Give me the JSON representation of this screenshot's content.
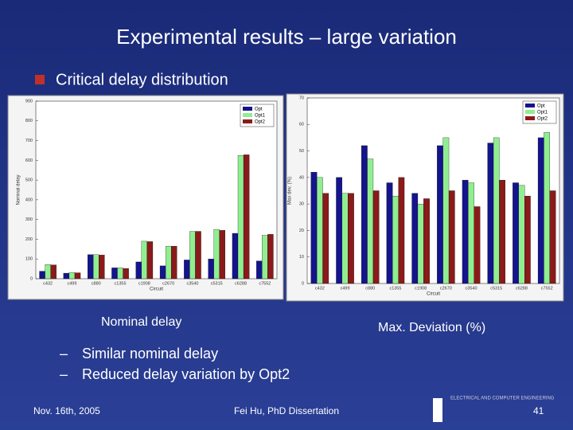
{
  "title": "Experimental results – large variation",
  "bullet": "Critical delay distribution",
  "captions": [
    "Nominal delay",
    "Max. Deviation (%)"
  ],
  "sub_bullets": [
    "Similar nominal delay",
    "Reduced delay variation by Opt2"
  ],
  "footer": {
    "date": "Nov. 16th, 2005",
    "center": "Fei Hu, PhD Dissertation",
    "page": "41",
    "logo": "ELECTRICAL AND COMPUTER ENGINEERING"
  },
  "chart_data": [
    {
      "type": "bar",
      "ylabel": "Nominal delay",
      "xlabel": "Circuit",
      "categories": [
        "c432",
        "c499",
        "c880",
        "c1355",
        "c1908",
        "c2670",
        "c3540",
        "c5315",
        "c6288",
        "c7552"
      ],
      "series": [
        {
          "name": "Opt",
          "color": "#14148c",
          "values": [
            38,
            28,
            122,
            55,
            85,
            65,
            95,
            100,
            230,
            90
          ]
        },
        {
          "name": "Opt1",
          "color": "#90ee90",
          "values": [
            72,
            32,
            122,
            55,
            190,
            165,
            240,
            250,
            625,
            220
          ]
        },
        {
          "name": "Opt2",
          "color": "#8b1a1a",
          "values": [
            70,
            30,
            120,
            52,
            188,
            165,
            240,
            245,
            628,
            225
          ]
        }
      ],
      "ylim": [
        0,
        900
      ],
      "yticks": [
        0,
        100,
        200,
        300,
        400,
        500,
        600,
        700,
        800,
        900
      ],
      "legend": "top-right"
    },
    {
      "type": "bar",
      "ylabel": "Max dev. (%)",
      "xlabel": "Circuit",
      "categories": [
        "c432",
        "c499",
        "c880",
        "c1355",
        "c1908",
        "c2670",
        "c3540",
        "c5315",
        "c6288",
        "c7552"
      ],
      "series": [
        {
          "name": "Opt",
          "color": "#14148c",
          "values": [
            42,
            40,
            52,
            38,
            34,
            52,
            39,
            53,
            38,
            55
          ]
        },
        {
          "name": "Opt1",
          "color": "#90ee90",
          "values": [
            40,
            34,
            47,
            33,
            30,
            55,
            38,
            55,
            37,
            57
          ]
        },
        {
          "name": "Opt2",
          "color": "#8b1a1a",
          "values": [
            34,
            34,
            35,
            40,
            32,
            35,
            29,
            39,
            33,
            35
          ]
        }
      ],
      "ylim": [
        0,
        70
      ],
      "yticks": [
        0,
        10,
        20,
        30,
        40,
        50,
        60,
        70
      ],
      "legend": "top-right"
    }
  ]
}
